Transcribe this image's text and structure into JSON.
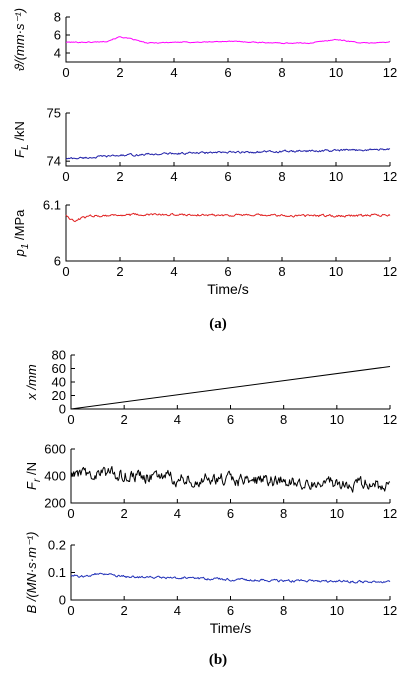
{
  "chart_data": [
    {
      "type": "line",
      "panel": "a",
      "ylabel": "ϑ/(mm·s⁻¹)",
      "xlim": [
        0,
        12
      ],
      "ylim": [
        3,
        8
      ],
      "yticks": [
        "4",
        "6",
        "8"
      ],
      "xticks": [
        "0",
        "2",
        "4",
        "6",
        "8",
        "10",
        "12"
      ],
      "series": [
        {
          "color": "#ff00ff",
          "x": [
            0,
            1,
            1.5,
            2,
            2.5,
            3,
            4,
            5,
            6,
            7,
            8,
            9,
            10,
            10.5,
            11,
            12
          ],
          "y": [
            5.2,
            5.2,
            5.3,
            5.8,
            5.5,
            5.1,
            5.2,
            5.2,
            5.3,
            5.2,
            5.1,
            5.1,
            5.5,
            5.3,
            5.1,
            5.2
          ],
          "noise": 0.06
        }
      ]
    },
    {
      "type": "line",
      "panel": "a",
      "ylabel": "F_L /kN",
      "xlim": [
        0,
        12
      ],
      "ylim": [
        73.9,
        75
      ],
      "yticks": [
        "74",
        "75"
      ],
      "xticks": [
        "0",
        "2",
        "4",
        "6",
        "8",
        "10",
        "12"
      ],
      "series": [
        {
          "color": "#1f1fa8",
          "x": [
            0,
            1,
            2,
            4,
            6,
            8,
            10,
            12
          ],
          "y": [
            74.05,
            74.08,
            74.12,
            74.16,
            74.18,
            74.2,
            74.22,
            74.25
          ],
          "noise": 0.025
        }
      ]
    },
    {
      "type": "line",
      "panel": "a",
      "ylabel": "p_1 /MPa",
      "xlim": [
        0,
        12
      ],
      "ylim": [
        6,
        6.1
      ],
      "yticks": [
        "6",
        "6.1"
      ],
      "xticks": [
        "0",
        "2",
        "4",
        "6",
        "8",
        "10",
        "12"
      ],
      "xlabel": "Time/s",
      "series": [
        {
          "color": "#e02020",
          "x": [
            0,
            0.3,
            0.6,
            1,
            2,
            4,
            6,
            8,
            10,
            12
          ],
          "y": [
            6.083,
            6.07,
            6.077,
            6.081,
            6.082,
            6.083,
            6.082,
            6.081,
            6.081,
            6.082
          ],
          "noise": 0.0025
        }
      ]
    },
    {
      "type": "line",
      "panel": "b",
      "ylabel": "x /mm",
      "xlim": [
        0,
        12
      ],
      "ylim": [
        0,
        80
      ],
      "yticks": [
        "0",
        "20",
        "40",
        "60",
        "80"
      ],
      "xticks": [
        "0",
        "2",
        "4",
        "6",
        "8",
        "10",
        "12"
      ],
      "series": [
        {
          "color": "#000000",
          "x": [
            0,
            12
          ],
          "y": [
            0,
            63
          ],
          "noise": 0
        }
      ]
    },
    {
      "type": "line",
      "panel": "b",
      "ylabel": "F_r /N",
      "xlim": [
        0,
        12
      ],
      "ylim": [
        200,
        600
      ],
      "yticks": [
        "200",
        "400",
        "600"
      ],
      "xticks": [
        "0",
        "2",
        "4",
        "6",
        "8",
        "10",
        "12"
      ],
      "series": [
        {
          "color": "#000000",
          "x": [
            0,
            1,
            2,
            4,
            6,
            8,
            10,
            12
          ],
          "y": [
            400,
            420,
            410,
            380,
            370,
            360,
            350,
            330
          ],
          "noise": 55
        }
      ]
    },
    {
      "type": "line",
      "panel": "b",
      "ylabel": "B /(MN·s·m⁻¹)",
      "xlim": [
        0,
        12
      ],
      "ylim": [
        0,
        0.2
      ],
      "yticks": [
        "0",
        "0.1",
        "0.2"
      ],
      "xticks": [
        "0",
        "2",
        "4",
        "6",
        "8",
        "10",
        "12"
      ],
      "xlabel": "Time/s",
      "series": [
        {
          "color": "#2030b8",
          "x": [
            0,
            0.5,
            1,
            2,
            4,
            6,
            8,
            10,
            12
          ],
          "y": [
            0.09,
            0.085,
            0.095,
            0.085,
            0.08,
            0.075,
            0.07,
            0.068,
            0.065
          ],
          "noise": 0.005
        }
      ]
    }
  ],
  "captions": {
    "a": "(a)",
    "b": "(b)"
  }
}
